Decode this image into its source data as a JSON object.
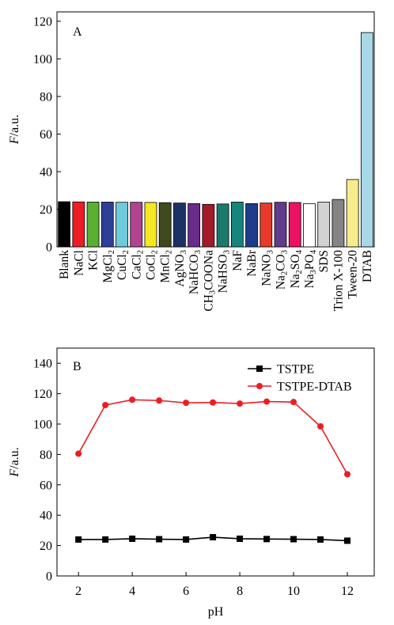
{
  "chart_data": [
    {
      "type": "bar",
      "panel_label": "A",
      "ylabel_italic": "F",
      "ylabel_rest": "/a.u.",
      "ylim": [
        0,
        125
      ],
      "yticks": [
        0,
        20,
        40,
        60,
        80,
        100,
        120
      ],
      "grid": false,
      "categories": [
        [
          {
            "t": "Blank"
          }
        ],
        [
          {
            "t": "NaCl"
          }
        ],
        [
          {
            "t": "KCl"
          }
        ],
        [
          {
            "t": "MgCl"
          },
          {
            "t": "2",
            "s": "sub"
          }
        ],
        [
          {
            "t": "CuCl"
          },
          {
            "t": "2",
            "s": "sub"
          }
        ],
        [
          {
            "t": "CaCl"
          },
          {
            "t": "2",
            "s": "sub"
          }
        ],
        [
          {
            "t": "CoCl"
          },
          {
            "t": "2",
            "s": "sub"
          }
        ],
        [
          {
            "t": "MnCl"
          },
          {
            "t": "2",
            "s": "sub"
          }
        ],
        [
          {
            "t": "AgNO"
          },
          {
            "t": "3",
            "s": "sub"
          }
        ],
        [
          {
            "t": "NaHCO"
          },
          {
            "t": "3",
            "s": "sub"
          }
        ],
        [
          {
            "t": "CH"
          },
          {
            "t": "3",
            "s": "sub"
          },
          {
            "t": "COONa"
          }
        ],
        [
          {
            "t": "NaHSO"
          },
          {
            "t": "3",
            "s": "sub"
          }
        ],
        [
          {
            "t": "NaF"
          }
        ],
        [
          {
            "t": "NaBr"
          }
        ],
        [
          {
            "t": "NaNO"
          },
          {
            "t": "3",
            "s": "sub"
          }
        ],
        [
          {
            "t": "Na"
          },
          {
            "t": "2",
            "s": "sub"
          },
          {
            "t": "CO"
          },
          {
            "t": "3",
            "s": "sub"
          }
        ],
        [
          {
            "t": "Na"
          },
          {
            "t": "2",
            "s": "sub"
          },
          {
            "t": "SO"
          },
          {
            "t": "4",
            "s": "sub"
          }
        ],
        [
          {
            "t": "Na"
          },
          {
            "t": "3",
            "s": "sub"
          },
          {
            "t": "PO"
          },
          {
            "t": "4",
            "s": "sub"
          }
        ],
        [
          {
            "t": "SDS"
          }
        ],
        [
          {
            "t": "Trion X-100"
          }
        ],
        [
          {
            "t": "Tween-20"
          }
        ],
        [
          {
            "t": "DTAB"
          }
        ]
      ],
      "values": [
        24,
        23.9,
        23.8,
        23.8,
        23.7,
        23.7,
        23.6,
        23.5,
        23.3,
        23.0,
        22.6,
        22.8,
        23.8,
        23.0,
        23.3,
        23.7,
        23.6,
        23.0,
        23.8,
        25.2,
        35.8,
        114.0
      ],
      "colors": [
        "#000000",
        "#ee1c24",
        "#5ab031",
        "#2e3f98",
        "#6fcadc",
        "#b2438e",
        "#f5e820",
        "#3f4a1f",
        "#1c3264",
        "#6a2c8a",
        "#a31a2a",
        "#1c7a6a",
        "#16857e",
        "#1d3c8c",
        "#e63a2a",
        "#603c8a",
        "#ec1162",
        "#ffffff",
        "#d2d2d2",
        "#848484",
        "#f7ec8c",
        "#a8d8e6"
      ]
    },
    {
      "type": "line",
      "panel_label": "B",
      "xlabel": "pH",
      "ylabel_italic": "F",
      "ylabel_rest": "/a.u.",
      "xlim": [
        1.2,
        13
      ],
      "ylim": [
        0,
        150
      ],
      "xticks": [
        2,
        4,
        6,
        8,
        10,
        12
      ],
      "yticks": [
        0,
        20,
        40,
        60,
        80,
        100,
        120,
        140
      ],
      "grid": false,
      "legend_position": "top-right",
      "x": [
        2,
        3,
        4,
        5,
        6,
        7,
        8,
        9,
        10,
        11,
        12
      ],
      "series": [
        {
          "name": "TSTPE",
          "color": "#000000",
          "marker": "square",
          "values": [
            24.0,
            24.0,
            24.5,
            24.2,
            24.0,
            25.5,
            24.5,
            24.3,
            24.2,
            24.0,
            23.2
          ]
        },
        {
          "name": "TSTPE-DTAB",
          "color": "#ee1c24",
          "marker": "circle",
          "values": [
            80.5,
            112.5,
            116.0,
            115.5,
            114.0,
            114.2,
            113.5,
            114.8,
            114.5,
            98.5,
            67.0
          ]
        }
      ]
    }
  ]
}
